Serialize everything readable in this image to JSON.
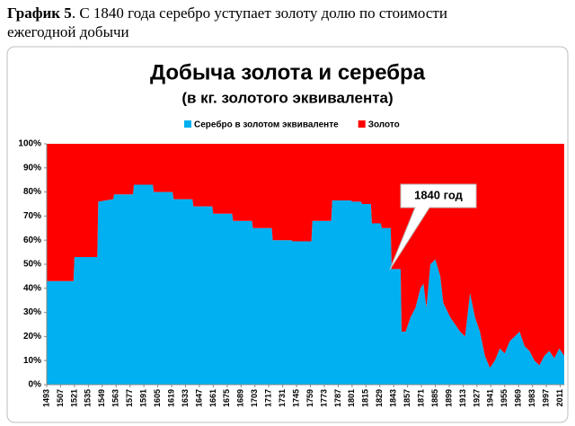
{
  "header": {
    "label": "График 5",
    "text": ". С 1840 года серебро уступает золоту долю по стоимости ежегодной добычи"
  },
  "chart_data": {
    "type": "area",
    "stacked": true,
    "title": "Добыча золота и серебра",
    "subtitle": "(в кг. золотого эквивалента)",
    "annotation": "1840 год",
    "x": [
      1493,
      1520,
      1521,
      1544,
      1545,
      1560,
      1561,
      1580,
      1581,
      1600,
      1601,
      1620,
      1621,
      1640,
      1641,
      1660,
      1661,
      1680,
      1681,
      1700,
      1701,
      1720,
      1721,
      1740,
      1741,
      1760,
      1761,
      1780,
      1781,
      1800,
      1801,
      1810,
      1811,
      1820,
      1821,
      1830,
      1831,
      1840,
      1841,
      1850,
      1851,
      1855,
      1860,
      1865,
      1870,
      1873,
      1876,
      1880,
      1885,
      1890,
      1893,
      1900,
      1905,
      1910,
      1915,
      1920,
      1925,
      1930,
      1935,
      1940,
      1945,
      1950,
      1955,
      1960,
      1965,
      1970,
      1975,
      1980,
      1985,
      1990,
      1995,
      2000,
      2005,
      2010,
      2015
    ],
    "series": [
      {
        "name": "Серебро в золотом эквиваленте",
        "color": "#00b0f0",
        "values": [
          43,
          43,
          53,
          53,
          76,
          77,
          79,
          79,
          83,
          83,
          80,
          80,
          77,
          77,
          74,
          74,
          71,
          71,
          68,
          68,
          65,
          65,
          60,
          60,
          59.5,
          59.5,
          68,
          68,
          76.5,
          76.5,
          76,
          76,
          75,
          75,
          67,
          67,
          65,
          65,
          48,
          48,
          22,
          22,
          28,
          32,
          40,
          42,
          32,
          50,
          52,
          45,
          34,
          28,
          25,
          22,
          20,
          38,
          28,
          22,
          12,
          7,
          10,
          15,
          13,
          18,
          20,
          22,
          16,
          14,
          10,
          8,
          12,
          14,
          11,
          15,
          12
        ]
      },
      {
        "name": "Золото",
        "color": "#ff0000",
        "values": [
          57,
          57,
          47,
          47,
          24,
          23,
          21,
          21,
          17,
          17,
          20,
          20,
          23,
          23,
          26,
          26,
          29,
          29,
          32,
          32,
          35,
          35,
          40,
          40,
          40.5,
          40.5,
          32,
          32,
          23.5,
          23.5,
          24,
          24,
          25,
          25,
          33,
          33,
          35,
          35,
          52,
          52,
          78,
          78,
          72,
          68,
          60,
          58,
          68,
          50,
          48,
          55,
          66,
          72,
          75,
          78,
          80,
          62,
          72,
          78,
          88,
          93,
          90,
          85,
          87,
          82,
          80,
          78,
          84,
          86,
          90,
          92,
          88,
          86,
          89,
          85,
          88
        ]
      }
    ],
    "xlim": [
      1493,
      2015
    ],
    "xticks": [
      1493,
      1507,
      1521,
      1535,
      1549,
      1563,
      1577,
      1591,
      1605,
      1619,
      1633,
      1647,
      1661,
      1675,
      1689,
      1703,
      1717,
      1731,
      1745,
      1759,
      1773,
      1787,
      1801,
      1815,
      1829,
      1843,
      1857,
      1871,
      1885,
      1899,
      1913,
      1927,
      1941,
      1955,
      1969,
      1983,
      1997,
      2011
    ],
    "ylim": [
      0,
      100
    ],
    "yticks": [
      {
        "value": 0,
        "label": "0%"
      },
      {
        "value": 10,
        "label": "10%"
      },
      {
        "value": 20,
        "label": "20%"
      },
      {
        "value": 30,
        "label": "30%"
      },
      {
        "value": 40,
        "label": "40%"
      },
      {
        "value": 50,
        "label": "50%"
      },
      {
        "value": 60,
        "label": "60%"
      },
      {
        "value": 70,
        "label": "70%"
      },
      {
        "value": 80,
        "label": "80%"
      },
      {
        "value": 90,
        "label": "90%"
      },
      {
        "value": 100,
        "label": "100%"
      }
    ],
    "legend": "top"
  }
}
